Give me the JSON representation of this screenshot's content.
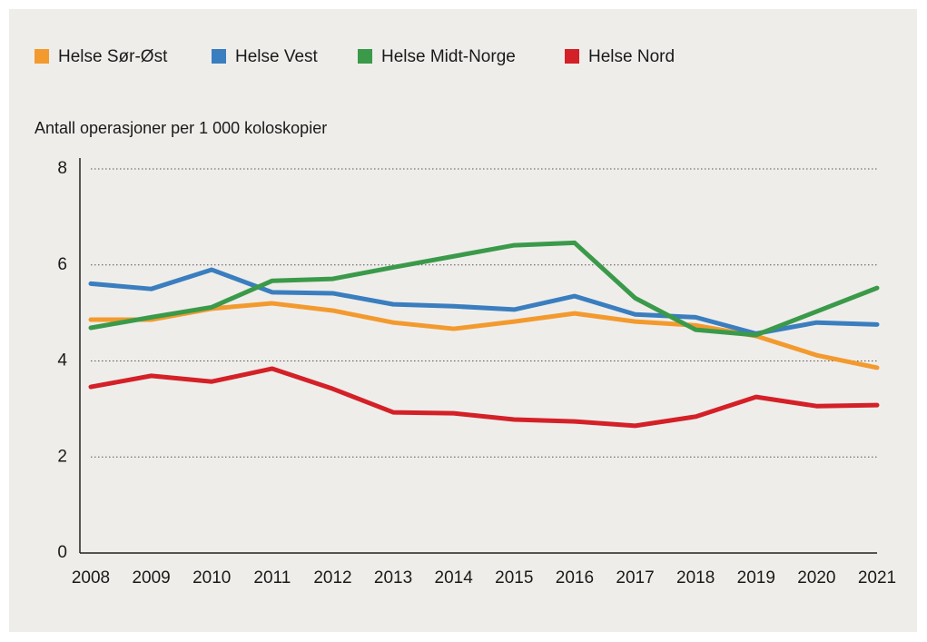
{
  "chart_data": {
    "type": "line",
    "y_axis_label": "Antall operasjoner per 1 000 koloskopier",
    "categories": [
      "2008",
      "2009",
      "2010",
      "2011",
      "2012",
      "2013",
      "2014",
      "2015",
      "2016",
      "2017",
      "2018",
      "2019",
      "2020",
      "2021"
    ],
    "series": [
      {
        "name": "Helse Sør-Øst",
        "color": "#f39a2e",
        "values": [
          4.86,
          4.86,
          5.09,
          5.2,
          5.05,
          4.8,
          4.67,
          4.82,
          4.99,
          4.82,
          4.74,
          4.52,
          4.12,
          3.86
        ]
      },
      {
        "name": "Helse Vest",
        "color": "#3a7ebf",
        "values": [
          5.61,
          5.5,
          5.9,
          5.43,
          5.41,
          5.18,
          5.14,
          5.07,
          5.35,
          4.97,
          4.91,
          4.57,
          4.8,
          4.76
        ]
      },
      {
        "name": "Helse Midt-Norge",
        "color": "#3a9a4a",
        "values": [
          4.69,
          4.91,
          5.12,
          5.67,
          5.71,
          5.95,
          6.18,
          6.41,
          6.46,
          5.31,
          4.65,
          4.54,
          5.03,
          5.52
        ]
      },
      {
        "name": "Helse Nord",
        "color": "#d42027",
        "values": [
          3.46,
          3.69,
          3.57,
          3.84,
          3.42,
          2.93,
          2.91,
          2.78,
          2.74,
          2.65,
          2.84,
          3.25,
          3.06,
          3.08
        ]
      }
    ],
    "ylim": [
      0,
      8
    ],
    "yticks": [
      0,
      2,
      4,
      6,
      8
    ],
    "grid": true
  }
}
